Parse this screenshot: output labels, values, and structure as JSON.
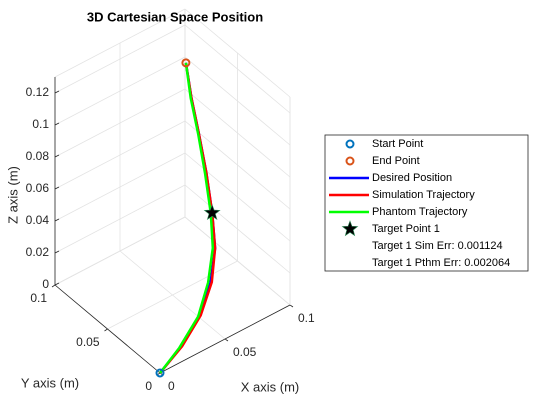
{
  "chart_data": {
    "type": "line3d",
    "title": "3D Cartesian Space Position",
    "xlabel": "X axis (m)",
    "ylabel": "Y axis (m)",
    "zlabel": "Z axis (m)",
    "xlim": [
      0,
      0.1
    ],
    "ylim": [
      0,
      0.1
    ],
    "zlim": [
      0,
      0.13
    ],
    "xticks": [
      0,
      0.05,
      0.1
    ],
    "yticks": [
      0,
      0.05,
      0.1
    ],
    "zticks": [
      0,
      0.02,
      0.04,
      0.06,
      0.08,
      0.1,
      0.12
    ],
    "grid": true,
    "series": [
      {
        "name": "Desired Position",
        "color": "#0000ff",
        "x": [
          0,
          0.02,
          0.04,
          0.055,
          0.065,
          0.07,
          0.072,
          0.072,
          0.071,
          0.07
        ],
        "y": [
          0,
          0.005,
          0.012,
          0.02,
          0.028,
          0.037,
          0.045,
          0.052,
          0.058,
          0.062
        ],
        "z": [
          0,
          0.005,
          0.012,
          0.022,
          0.035,
          0.05,
          0.07,
          0.09,
          0.11,
          0.13
        ]
      },
      {
        "name": "Simulation Trajectory",
        "color": "#ff0000",
        "x": [
          0,
          0.021,
          0.041,
          0.056,
          0.065,
          0.07,
          0.072,
          0.072,
          0.071,
          0.07
        ],
        "y": [
          0,
          0.005,
          0.012,
          0.02,
          0.028,
          0.037,
          0.045,
          0.052,
          0.058,
          0.062
        ],
        "z": [
          0,
          0.005,
          0.012,
          0.022,
          0.035,
          0.05,
          0.07,
          0.09,
          0.11,
          0.13
        ]
      },
      {
        "name": "Phantom Trajectory",
        "color": "#00ff00",
        "x": [
          0,
          0.019,
          0.039,
          0.054,
          0.064,
          0.069,
          0.071,
          0.0715,
          0.0705,
          0.07
        ],
        "y": [
          0,
          0.005,
          0.012,
          0.021,
          0.029,
          0.037,
          0.045,
          0.052,
          0.058,
          0.062
        ],
        "z": [
          0,
          0.005,
          0.012,
          0.022,
          0.035,
          0.05,
          0.07,
          0.09,
          0.11,
          0.13
        ]
      }
    ],
    "points": [
      {
        "name": "Start Point",
        "color": "#0072bd",
        "symbol": "circle",
        "x": 0,
        "y": 0,
        "z": 0
      },
      {
        "name": "End Point",
        "color": "#d95319",
        "symbol": "circle",
        "x": 0.07,
        "y": 0.062,
        "z": 0.13
      },
      {
        "name": "Target Point 1",
        "color": "#000000",
        "symbol": "star",
        "x": 0.07,
        "y": 0.037,
        "z": 0.05
      }
    ],
    "annotations": [
      "Target 1 Sim Err: 0.001124",
      "Target 1 Pthm Err: 0.002064"
    ]
  }
}
